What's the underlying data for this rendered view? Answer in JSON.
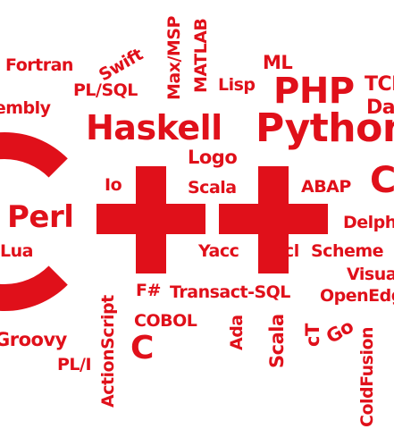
{
  "color": "#e0101a",
  "background": "#ffffff",
  "big_letters": [
    "C",
    "+",
    "+"
  ],
  "words": [
    "Fortran",
    "Swift",
    "Max/MSP",
    "MATLAB",
    "ML",
    "PL/SQL",
    "Lisp",
    "PHP",
    "TCL",
    "Dart",
    "Assembly",
    "Haskell",
    "Python",
    "Logo",
    "C",
    "Io",
    "Scala",
    "ABAP",
    "Perl",
    "Delphi",
    "Lua",
    "Yacc",
    "Tcl",
    "Scheme",
    "Visual",
    "F#",
    "Transact-SQL",
    "OpenEdge",
    "ActionScript",
    "COBOL",
    "Ada",
    "Scala",
    "cT",
    "Go",
    "Groovy",
    "PL/I",
    "C",
    "ColdFusion"
  ]
}
